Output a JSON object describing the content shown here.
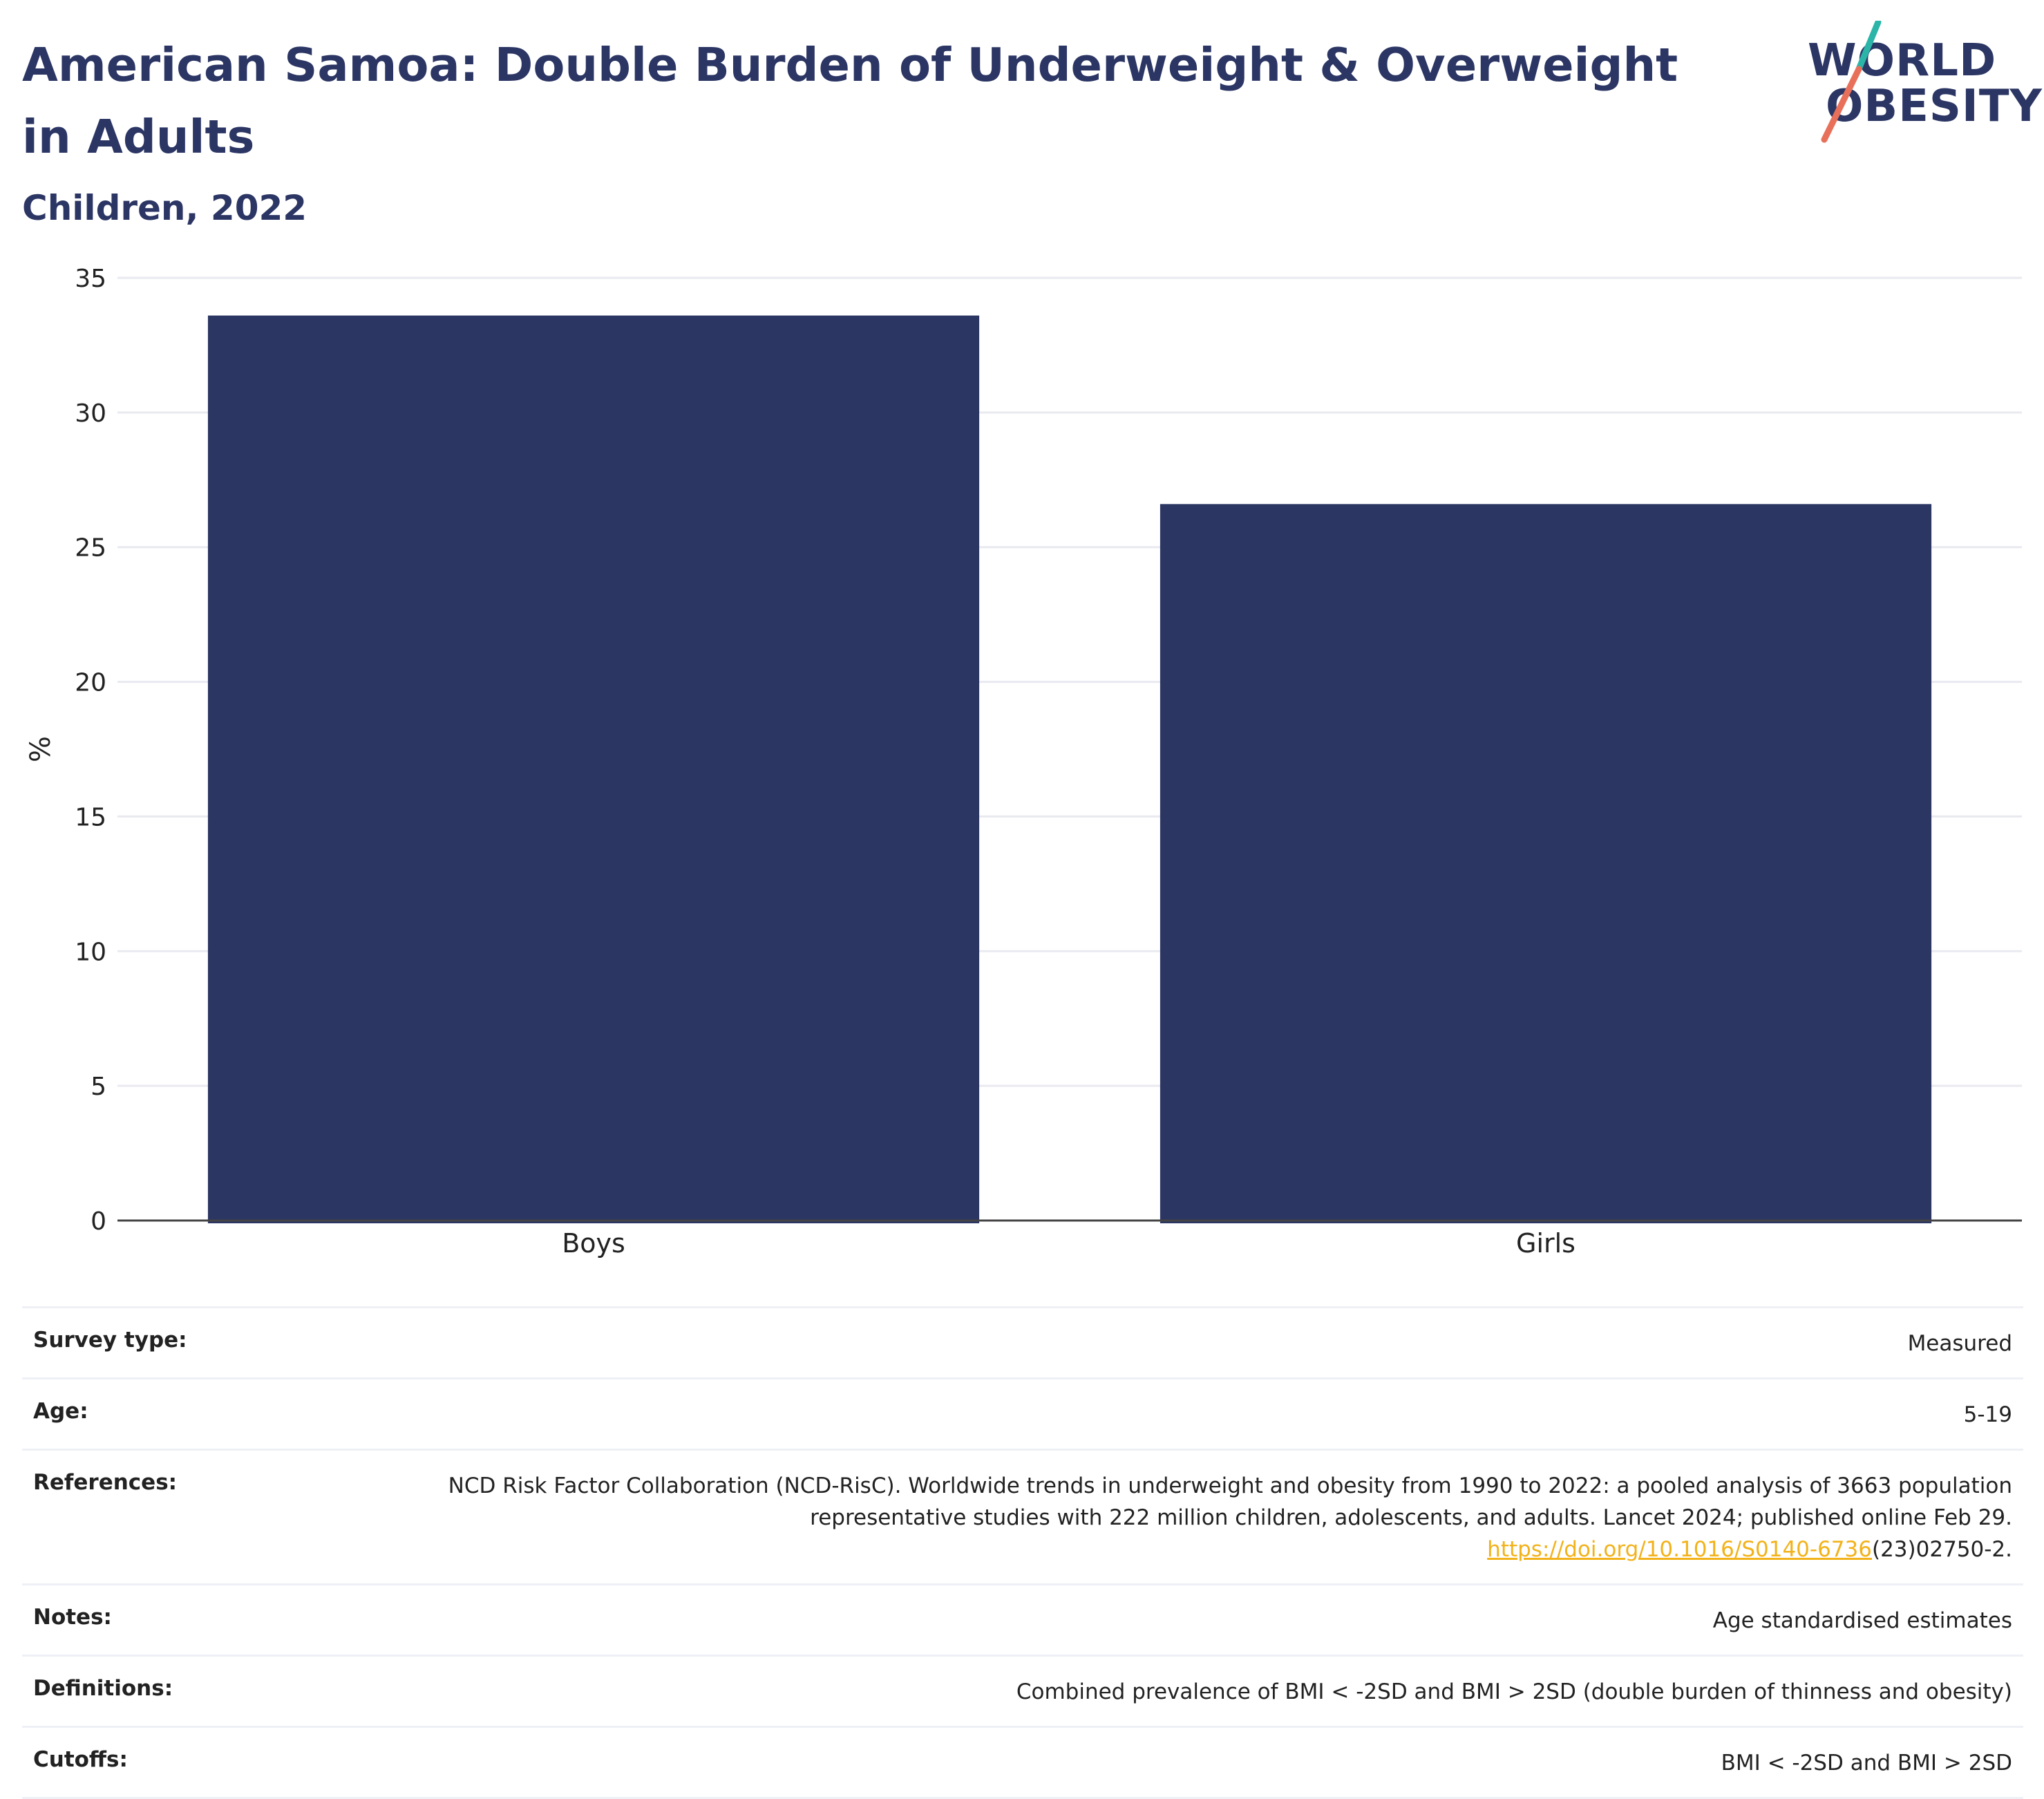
{
  "header": {
    "title": "American Samoa: Double Burden of Underweight & Overweight in Adults",
    "subtitle": "Children, 2022"
  },
  "logo": {
    "line1": "WORLD",
    "line2": "OBESITY",
    "accent_colors": [
      "#2bb5a8",
      "#e8705a"
    ]
  },
  "chart_data": {
    "type": "bar",
    "categories": [
      "Boys",
      "Girls"
    ],
    "values": [
      33.6,
      26.6
    ],
    "ylabel": "%",
    "xlabel": "",
    "ylim": [
      0,
      35
    ],
    "yticks": [
      0,
      5,
      10,
      15,
      20,
      25,
      30,
      35
    ],
    "grid": true,
    "bar_color": "#2b3663"
  },
  "meta": [
    {
      "key": "Survey type:",
      "value": "Measured"
    },
    {
      "key": "Age:",
      "value": "5-19"
    },
    {
      "key": "References:",
      "value": "NCD Risk Factor Collaboration (NCD-RisC). Worldwide trends in underweight and obesity from 1990 to 2022: a pooled analysis of 3663 population representative studies with 222 million children, adolescents, and adults. Lancet 2024; published online Feb 29.",
      "link": "https://doi.org/10.1016/S0140-6736",
      "link_suffix": "(23)02750-2."
    },
    {
      "key": "Notes:",
      "value": "Age standardised estimates"
    },
    {
      "key": "Definitions:",
      "value": "Combined prevalence of BMI < -2SD and BMI > 2SD (double burden of thinness and obesity)"
    },
    {
      "key": "Cutoffs:",
      "value": "BMI < -2SD and BMI > 2SD"
    }
  ]
}
